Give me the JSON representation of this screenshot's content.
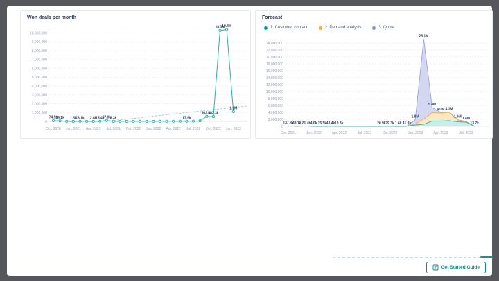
{
  "frame": {
    "color": "#55575c",
    "surface": "#ffffff"
  },
  "get_started": {
    "label": "Get Started Guide",
    "icon": "guide-book-icon",
    "accent": "#0e8a84"
  },
  "bottom_accent": {
    "dashed_color": "#bce4e1",
    "solid_color": "#17948d"
  },
  "chart_data": [
    {
      "type": "line",
      "title": "Won deals per month",
      "xlabel": "",
      "ylabel": "",
      "x_tick_labels": [
        "Oct, 2020",
        "Jan, 2021",
        "Apr, 2021",
        "Jul, 2021",
        "Oct, 2021",
        "Jan, 2022",
        "Apr, 2022",
        "Jul, 2022",
        "Oct, 2022",
        "Jan, 2023"
      ],
      "x_tick_every": 3,
      "values_k": [
        74.5,
        54.1,
        5,
        1.5,
        16.1,
        8,
        2.6,
        15.4,
        97,
        3.3,
        5,
        8,
        10,
        12,
        8,
        10,
        12,
        15,
        18,
        15,
        17.9,
        30,
        60,
        562.4,
        542.3,
        10300,
        10400,
        1100
      ],
      "point_labels": {
        "0": "74.5k",
        "1": "54.1k",
        "3": "1.5k",
        "4": "16.1k",
        "6": "2.6k",
        "7": "15.4k",
        "8": "97.0k",
        "9": "3.3k",
        "20": "17.9k",
        "23": "562.4k",
        "24": "542.3k",
        "25": "10.3M",
        "26": "10.4M",
        "27": "1.1M"
      },
      "y_ticks_k": [
        0,
        1000,
        2000,
        3000,
        4000,
        5000,
        6000,
        7000,
        8000,
        9000,
        10000
      ],
      "ylim_k": [
        0,
        10600
      ],
      "grid": true,
      "line_color": "#24b3a8",
      "trendline": {
        "style": "dashed",
        "start_index": 8,
        "from_k": 20,
        "to_k": 1750,
        "color": "#7fcdc7"
      },
      "label_color": "#33415e",
      "tick_color": "#98a0b5"
    },
    {
      "type": "area",
      "title": "Forecast",
      "xlabel": "",
      "ylabel": "",
      "legend_position": "top",
      "legend": [
        {
          "label": "1. Customer contact",
          "color": "#00a09d"
        },
        {
          "label": "2. Demand analysis",
          "color": "#f2b23e"
        },
        {
          "label": "3. Quote",
          "color": "#8892bd"
        }
      ],
      "x_tick_labels": [
        "Oct, 2021",
        "Jan, 2022",
        "Apr, 2022",
        "Jul, 2022",
        "Oct, 2022",
        "Jan, 2023",
        "Apr, 2023",
        "Jul, 2023"
      ],
      "x_tick_every": 3,
      "series": [
        {
          "name": "1. Customer contact",
          "stroke": "#2bb3a9",
          "fill": "#cdebe8",
          "values_m": [
            0.138,
            0.043,
            0.122,
            0.004,
            0.016,
            0.043,
            0.019,
            0.005,
            0.005,
            0.005,
            0.005,
            0.021,
            0.029,
            0.002,
            0.042,
            0.4,
            0.6,
            1.5,
            1.5,
            1.6,
            1.3,
            1.2,
            0.014
          ]
        },
        {
          "name": "2. Demand analysis",
          "stroke": "#edb14c",
          "fill": "#fbe7c3",
          "values_m": [
            0,
            0,
            0,
            0,
            0,
            0,
            0,
            0,
            0,
            0,
            0,
            0,
            0,
            0,
            0,
            0.3,
            1.5,
            2.4,
            2.3,
            2.4,
            0.5,
            0.2,
            0
          ]
        },
        {
          "name": "3. Quote",
          "stroke": "#9aa3d8",
          "fill": "#d3d8f0",
          "values_m": [
            0,
            0,
            0,
            0,
            0,
            0,
            0,
            0,
            0,
            0,
            0,
            0,
            0,
            0,
            0,
            1.2,
            23.0,
            1.5,
            0.2,
            0.1,
            0.1,
            0,
            0
          ]
        }
      ],
      "total_labels": {
        "0": "137.8k",
        "1": "43.1k",
        "2": "121.7k",
        "3": "4.0k",
        "4": "15.5k",
        "5": "43.4k",
        "6": "19.3k",
        "11": "20.9k",
        "12": "29.3k",
        "13": "1.6k",
        "14": "41.9k",
        "15": "1.9M",
        "16": "25.1M",
        "17": "5.4M",
        "18": "4.0M",
        "19": "4.1M",
        "20": "1.9M",
        "21": "1.4M",
        "22": "13.7k"
      },
      "y_ticks_m": [
        0,
        2,
        4,
        6,
        8,
        10,
        12,
        14,
        16,
        18,
        20,
        22,
        24
      ],
      "ylim_m": [
        0,
        25.6
      ],
      "grid": true,
      "label_color": "#33415e",
      "tick_color": "#98a0b5"
    }
  ]
}
